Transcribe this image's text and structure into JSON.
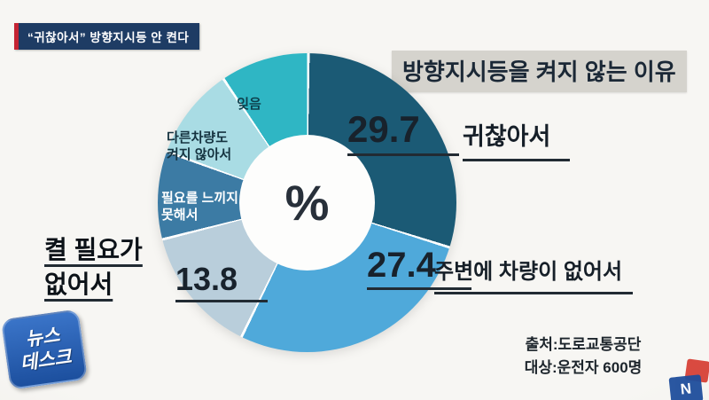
{
  "badge": {
    "text": "“귀찮아서” 방향지시등 안 켠다"
  },
  "title": "방향지시등을 켜지 않는 이유",
  "center_symbol": "%",
  "chart_data": {
    "type": "pie",
    "title": "방향지시등을 켜지 않는 이유",
    "unit": "%",
    "legend_position": "on-chart",
    "donut": true,
    "segments": [
      {
        "label": "귀찮아서",
        "value": 29.7,
        "color": "#1b5a75",
        "value_shown": true
      },
      {
        "label": "주변에 차량이 없어서",
        "value": 27.4,
        "color": "#4fa9da",
        "value_shown": true
      },
      {
        "label": "켤 필요가 없어서",
        "value": 13.8,
        "color": "#b9cedb",
        "value_shown": true
      },
      {
        "label": "필요를 느끼지 못해서",
        "value": 9.5,
        "color": "#3c7ba4",
        "value_shown": false,
        "value_estimated": true
      },
      {
        "label": "다른차량도 켜지 않아서",
        "value": 10.0,
        "color": "#a9dce4",
        "value_shown": false,
        "value_estimated": true
      },
      {
        "label": "잊음",
        "value": 9.6,
        "color": "#2fb6c4",
        "value_shown": false,
        "value_estimated": true
      }
    ]
  },
  "source": {
    "line1": "출처:도로교통공단",
    "line2": "대상:운전자 600명"
  },
  "logo": {
    "line1": "뉴스",
    "line2": "데스크"
  },
  "corner_logo": {
    "letter": "N"
  }
}
